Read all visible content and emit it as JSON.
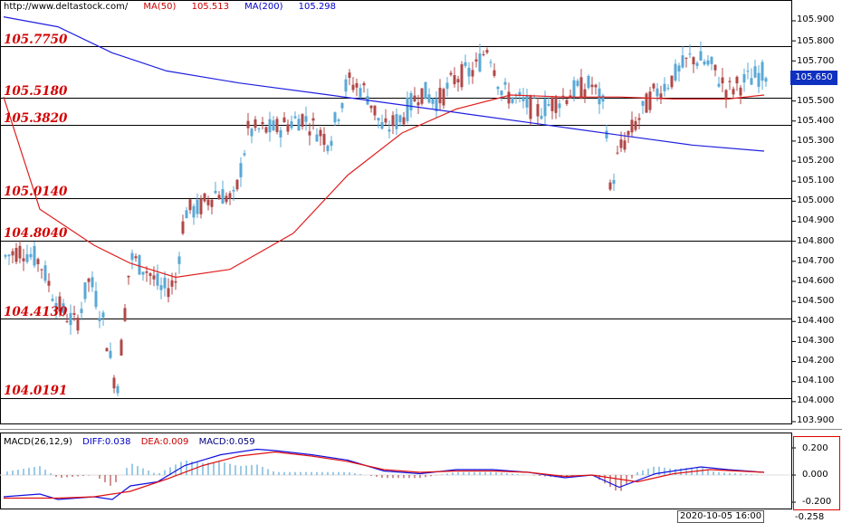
{
  "header": {
    "url": "http://www.deltastock.com/",
    "ma50_label": "MA(50)",
    "ma50_value": "105.513",
    "ma200_label": "MA(200)",
    "ma200_value": "105.298"
  },
  "macd_header": {
    "name": "MACD(26,12,9)",
    "diff": "DIFF:0.038",
    "dea": "DEA:0.009",
    "macd": "MACD:0.059"
  },
  "current_price": "105.650",
  "date_label": "2020-10-05 16:00",
  "bottom_value": "-0.258",
  "colors": {
    "up": "#5aa8d6",
    "down": "#b04848",
    "ma50": "#e02020",
    "ma200": "#2020e0",
    "level_line": "#000000",
    "level_text": "#d40000",
    "price_tag": "#1030c0"
  },
  "chart_data": [
    {
      "type": "candlestick",
      "ylim": [
        103.85,
        105.98
      ],
      "yticks": [
        "105.900",
        "105.800",
        "105.700",
        "105.600",
        "105.500",
        "105.400",
        "105.300",
        "105.200",
        "105.100",
        "105.000",
        "104.900",
        "104.800",
        "104.700",
        "104.600",
        "104.500",
        "104.400",
        "104.300",
        "104.200",
        "104.100",
        "104.000",
        "103.900"
      ],
      "levels": [
        "105.7750",
        "105.5180",
        "105.3820",
        "105.0140",
        "104.8040",
        "104.4130",
        "104.0191"
      ],
      "series": [
        {
          "name": "MA(50)",
          "values": [
            [
              0,
              105.52
            ],
            [
              40,
              104.96
            ],
            [
              100,
              104.78
            ],
            [
              140,
              104.69
            ],
            [
              190,
              104.62
            ],
            [
              250,
              104.66
            ],
            [
              320,
              104.84
            ],
            [
              380,
              105.13
            ],
            [
              440,
              105.34
            ],
            [
              500,
              105.46
            ],
            [
              560,
              105.53
            ],
            [
              620,
              105.52
            ],
            [
              680,
              105.52
            ],
            [
              740,
              105.51
            ],
            [
              800,
              105.51
            ],
            [
              840,
              105.53
            ]
          ]
        },
        {
          "name": "MA(200)",
          "values": [
            [
              0,
              105.92
            ],
            [
              60,
              105.87
            ],
            [
              120,
              105.74
            ],
            [
              180,
              105.65
            ],
            [
              260,
              105.59
            ],
            [
              360,
              105.53
            ],
            [
              440,
              105.48
            ],
            [
              520,
              105.43
            ],
            [
              600,
              105.38
            ],
            [
              680,
              105.33
            ],
            [
              760,
              105.28
            ],
            [
              840,
              105.25
            ]
          ]
        }
      ]
    },
    {
      "type": "bar",
      "title": "MACD(26,12,9)",
      "ylim": [
        -0.258,
        0.258
      ],
      "yticks": [
        "0.200",
        "0.000",
        "-0.200"
      ],
      "series": [
        {
          "name": "DIFF",
          "values": [
            [
              0,
              -0.16
            ],
            [
              40,
              -0.14
            ],
            [
              60,
              -0.18
            ],
            [
              100,
              -0.16
            ],
            [
              120,
              -0.18
            ],
            [
              140,
              -0.08
            ],
            [
              170,
              -0.05
            ],
            [
              200,
              0.07
            ],
            [
              240,
              0.15
            ],
            [
              280,
              0.19
            ],
            [
              300,
              0.18
            ],
            [
              340,
              0.15
            ],
            [
              380,
              0.11
            ],
            [
              420,
              0.03
            ],
            [
              460,
              0.01
            ],
            [
              500,
              0.04
            ],
            [
              540,
              0.04
            ],
            [
              580,
              0.02
            ],
            [
              620,
              -0.02
            ],
            [
              650,
              0.0
            ],
            [
              680,
              -0.09
            ],
            [
              720,
              0.01
            ],
            [
              770,
              0.06
            ],
            [
              800,
              0.04
            ],
            [
              840,
              0.02
            ]
          ]
        },
        {
          "name": "DEA",
          "values": [
            [
              0,
              -0.17
            ],
            [
              60,
              -0.17
            ],
            [
              100,
              -0.16
            ],
            [
              140,
              -0.12
            ],
            [
              180,
              -0.03
            ],
            [
              220,
              0.07
            ],
            [
              260,
              0.14
            ],
            [
              300,
              0.17
            ],
            [
              340,
              0.14
            ],
            [
              380,
              0.1
            ],
            [
              420,
              0.04
            ],
            [
              460,
              0.02
            ],
            [
              500,
              0.03
            ],
            [
              540,
              0.03
            ],
            [
              580,
              0.02
            ],
            [
              620,
              -0.01
            ],
            [
              650,
              0.0
            ],
            [
              700,
              -0.05
            ],
            [
              740,
              0.01
            ],
            [
              780,
              0.04
            ],
            [
              840,
              0.02
            ]
          ]
        }
      ]
    }
  ]
}
